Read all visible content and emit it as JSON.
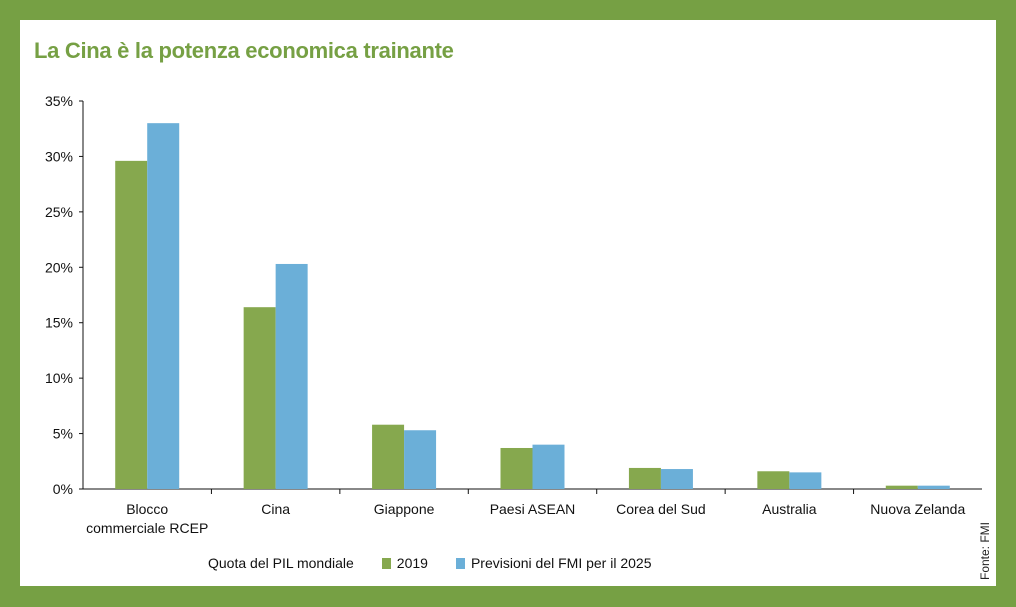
{
  "title": "La Cina è la potenza economica trainante",
  "source": "Fonte: FMI",
  "legend": {
    "caption": "Quota del PIL mondiale"
  },
  "colors": {
    "background": "#76a044",
    "series_2019": "#86a84e",
    "series_2025": "#6bafd8"
  },
  "chart_data": {
    "type": "bar",
    "categories": [
      [
        "Blocco",
        "commerciale RCEP"
      ],
      [
        "Cina"
      ],
      [
        "Giappone"
      ],
      [
        "Paesi ASEAN"
      ],
      [
        "Corea del Sud"
      ],
      [
        "Australia"
      ],
      [
        "Nuova Zelanda"
      ]
    ],
    "series": [
      {
        "name": "2019",
        "color": "#86a84e",
        "values": [
          29.6,
          16.4,
          5.8,
          3.7,
          1.9,
          1.6,
          0.3
        ]
      },
      {
        "name": "Previsioni del FMI per il 2025",
        "color": "#6bafd8",
        "values": [
          33.0,
          20.3,
          5.3,
          4.0,
          1.8,
          1.5,
          0.3
        ]
      }
    ],
    "yticks": [
      "0%",
      "5%",
      "10%",
      "15%",
      "20%",
      "25%",
      "30%",
      "35%"
    ],
    "ylim": [
      0,
      35
    ],
    "xlabel": "",
    "ylabel": "",
    "grid": false,
    "legend_position": "bottom"
  }
}
